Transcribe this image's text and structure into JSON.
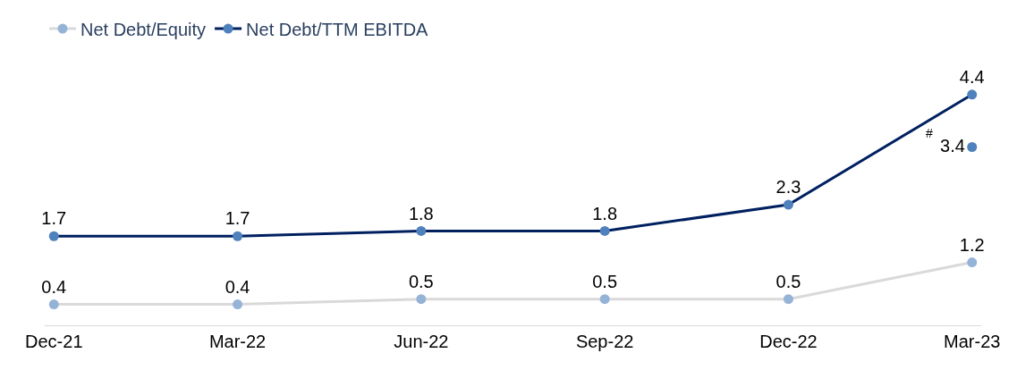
{
  "chart_data": {
    "type": "line",
    "categories": [
      "Dec-21",
      "Mar-22",
      "Jun-22",
      "Sep-22",
      "Dec-22",
      "Mar-23"
    ],
    "series": [
      {
        "name": "Net Debt/Equity",
        "color": "#d9d9d9",
        "colors": [
          "#95b3d7",
          "#95b3d7",
          "#95b3d7",
          "#95b3d7",
          "#95b3d7",
          "#95b3d7"
        ],
        "values": [
          0.4,
          0.4,
          0.5,
          0.5,
          0.5,
          1.2
        ]
      },
      {
        "name": "Net Debt/TTM EBITDA",
        "color": "#002060",
        "colors": [
          "#4f81bd",
          "#4f81bd",
          "#4f81bd",
          "#4f81bd",
          "#4f81bd",
          "#4f81bd"
        ],
        "values": [
          1.7,
          1.7,
          1.8,
          1.8,
          2.3,
          4.4
        ]
      },
      {
        "type": "scatter",
        "color": "#4f81bd",
        "values": [
          null,
          null,
          null,
          null,
          null,
          3.4
        ]
      }
    ],
    "annotations": [
      "#"
    ],
    "data_labels": true,
    "marker": "circle",
    "legend": "top left"
  }
}
